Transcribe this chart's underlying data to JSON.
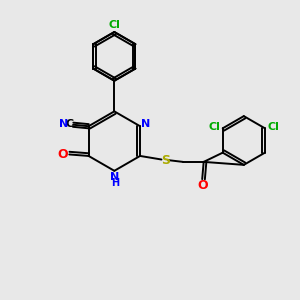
{
  "background_color": "#e8e8e8",
  "atom_colors": {
    "N": "#0000ff",
    "O": "#ff0000",
    "S": "#aaaa00",
    "Cl": "#00aa00"
  },
  "figsize": [
    3.0,
    3.0
  ],
  "dpi": 100
}
